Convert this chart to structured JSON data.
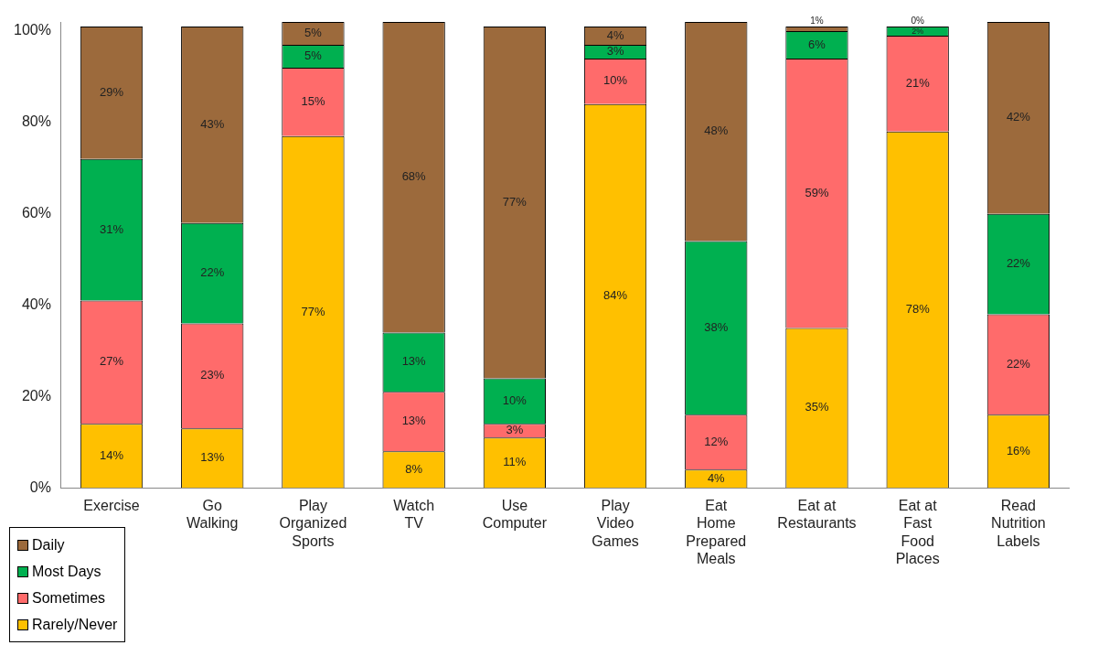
{
  "chart_data": {
    "type": "bar",
    "stacked": true,
    "legend": "bottom left",
    "grid": false,
    "categories": [
      "Exercise",
      "Go\nWalking",
      "Play\nOrganized\nSports",
      "Watch\nTV",
      "Use\nComputer",
      "Play\nVideo\nGames",
      "Eat\nHome\nPrepared\nMeals",
      "Eat at\nRestaurants",
      "Eat at\nFast\nFood\nPlaces",
      "Read\nNutrition\nLabels"
    ],
    "ylim": [
      0,
      102
    ],
    "yticks": [
      {
        "value": 0,
        "label": "0%"
      },
      {
        "value": 20,
        "label": "20%"
      },
      {
        "value": 40,
        "label": "40%"
      },
      {
        "value": 60,
        "label": "60%"
      },
      {
        "value": 80,
        "label": "80%"
      },
      {
        "value": 100,
        "label": "100%"
      }
    ],
    "series": [
      {
        "name": "Rarely/Never",
        "color": "#ffc000",
        "values": [
          14,
          13,
          77,
          8,
          11,
          84,
          4,
          35,
          78,
          16
        ],
        "value_labels": [
          "14%",
          "13%",
          "77%",
          "8%",
          "11%",
          "84%",
          "4%",
          "35%",
          "78%",
          "16%"
        ]
      },
      {
        "name": "Sometimes",
        "color": "#ff6b6b",
        "values": [
          27,
          23,
          15,
          13,
          3,
          10,
          12,
          59,
          21,
          22
        ],
        "value_labels": [
          "27%",
          "23%",
          "15%",
          "13%",
          "3%",
          "10%",
          "12%",
          "59%",
          "21%",
          "22%"
        ]
      },
      {
        "name": "Most Days",
        "color": "#00b050",
        "values": [
          31,
          22,
          5,
          13,
          10,
          3,
          38,
          6,
          2,
          22
        ],
        "value_labels": [
          "31%",
          "22%",
          "5%",
          "13%",
          "10%",
          "3%",
          "38%",
          "6%",
          "2%",
          "22%"
        ]
      },
      {
        "name": "Daily",
        "color": "#9c6a3c",
        "values": [
          29,
          43,
          5,
          68,
          77,
          4,
          48,
          1,
          0,
          42
        ],
        "value_labels": [
          "29%",
          "43%",
          "5%",
          "68%",
          "77%",
          "4%",
          "48%",
          "1%",
          "0%",
          "42%"
        ]
      }
    ]
  }
}
